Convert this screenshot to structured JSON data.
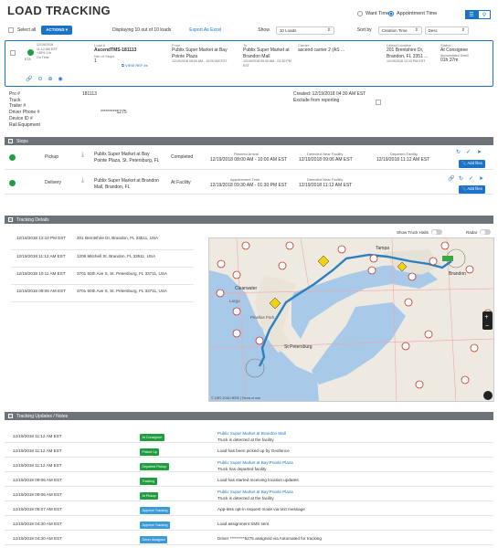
{
  "header": {
    "title": "LOAD TRACKING",
    "want_time_label": "Want Time",
    "appointment_time_label": "Appointment Time"
  },
  "toolbar": {
    "select_all_label": "Select all",
    "actions_label": "ACTIONS ▾",
    "displaying_text": "Displaying 10 out of 10 loads",
    "export_label": "Export As Excel",
    "show_label": "Show",
    "show_value": "10 Loads",
    "sort_label": "Sort by",
    "sort_value": "Creation Time",
    "order_value": "Desc"
  },
  "load": {
    "created_date": "12/19/2018",
    "created_time": "11:12 AM EST",
    "percent": "+45% 1 hr",
    "on_time": "On Time",
    "eta_label": "ETA",
    "load_num_label": "Load #",
    "load_num": "AscendTMS-181113",
    "num_stops_label": "Nbr of Stops",
    "num_stops": "1",
    "view_ref_label": "VIEW REF #s",
    "from_label": "From",
    "from_value": "Publix Super Market at Bay Pointe Plaza",
    "from_time": "12/19/2018 08:00 AM - 10:00 AM EST",
    "to_label": "To",
    "to_value": "Publix Super Market at Brandon Mall",
    "to_time": "12/19/2018 09:30 AM - 01:30 PM EST",
    "carrier_label": "Carrier",
    "carrier_value": "ascend carrier 2 (AS ...",
    "latest_label": "Latest Location",
    "latest_value": "201 Brentshire Dr, Brandon, FL 3351 ...",
    "latest_time": "12/19/2018 12:10 PM EST",
    "status_label": "Status",
    "status_value": "At Consignee",
    "accumulated_label": "Accumulated Dwell",
    "accumulated_value": "01h 37m"
  },
  "details": {
    "pro_label": "Pro #",
    "pro_value": "181113",
    "truck_label": "Truck",
    "trailer_label": "Trailer #",
    "driver_phone_label": "Driver Phone #",
    "driver_phone_value": "*********5275",
    "device_label": "Device ID #",
    "rail_label": "Rail Equipment",
    "created_text": "Created: 12/19/2018 04:30 AM EST",
    "exclude_label": "Exclude from reporting"
  },
  "stops": {
    "section_title": "Stops",
    "rows": [
      {
        "type": "Pickup",
        "address": "Publix Super Market at Bay Pointe Plaza, St. Petersburg, FL",
        "status": "Completed",
        "planned_label": "Planned Arrival",
        "planned": "12/19/2018 08:00 AM - 10:00 AM EST",
        "detected_label": "Detected Near Facility",
        "detected": "12/19/2018 09:06 AM EST",
        "departed_label": "Departed Facility",
        "departed": "12/19/2018 11:12 AM EST",
        "add_files": "Add files"
      },
      {
        "type": "Delivery",
        "address": "Publix Super Market at Brandon Mall, Brandon, FL",
        "status": "At Facility",
        "planned_label": "Appointment Time",
        "planned": "12/19/2018 09:30 AM - 01:30 PM EST",
        "detected_label": "Detected Near Facility",
        "detected": "12/19/2018 11:12 AM EST",
        "departed_label": "",
        "departed": "",
        "add_files": "Add files"
      }
    ]
  },
  "tracking": {
    "section_title": "Tracking Details",
    "show_truck_halts": "Show Truck Halts",
    "radar": "Radar",
    "map_credit": "© 1987-2018 HERE | Terms of use",
    "map_labels": {
      "tampa": "Tampa",
      "clearwater": "Clearwater",
      "st_pete": "St Petersburg",
      "brandon": "Brandon",
      "largo": "Largo",
      "pinellas": "Pinellas Park"
    },
    "rows": [
      {
        "time": "12/19/2018 12:10 PM EST",
        "address": "201 Brentshire Dr, Brandon, FL 33511, USA"
      },
      {
        "time": "12/19/2018 11:12 AM EST",
        "address": "1206 Mitchell St, Brandon, FL 33511, USA"
      },
      {
        "time": "12/19/2018 10:11 AM EST",
        "address": "3701 50th Ave S, St. Petersburg, FL 33711, USA"
      },
      {
        "time": "12/19/2018 09:06 AM EST",
        "address": "3701 50th Ave S, St. Petersburg, FL 33711, USA"
      }
    ]
  },
  "updates": {
    "section_title": "Tracking Updates / Notes",
    "rows": [
      {
        "time": "12/19/2018 11:12 AM EST",
        "badge": "At Consignee",
        "badge_color": "green",
        "link": "Publix Super Market at Brandon Mall",
        "text": "Truck is detected at the facility"
      },
      {
        "time": "12/19/2018 11:12 AM EST",
        "badge": "Picked Up",
        "badge_color": "green",
        "link": "",
        "text": "Load has been picked up by Geofence"
      },
      {
        "time": "12/19/2018 11:12 AM EST",
        "badge": "Departed Pickup",
        "badge_color": "green",
        "link": "Publix Super Market at Bay Pointe Plaza",
        "text": "Truck has departed facility"
      },
      {
        "time": "12/19/2018 09:06 AM EST",
        "badge": "Tracking",
        "badge_color": "green",
        "link": "",
        "text": "Load has started receiving location updates"
      },
      {
        "time": "12/19/2018 09:06 AM EST",
        "badge": "At Pickup",
        "badge_color": "green",
        "link": "Publix Super Market at Bay Pointe Plaza",
        "text": "Truck is detected at the facility"
      },
      {
        "time": "12/19/2018 05:07 AM EST",
        "badge": "Approve Tracking",
        "badge_color": "blue",
        "link": "",
        "text": "App-less opt-in request mode via text message"
      },
      {
        "time": "12/19/2018 04:30 AM EST",
        "badge": "Approve Tracking",
        "badge_color": "blue",
        "link": "",
        "text": "Load assignment SMS sent"
      },
      {
        "time": "12/19/2018 04:30 AM EST",
        "badge": "Driver Assigned",
        "badge_color": "blue",
        "link": "",
        "text": "Driver *********5275 assigned via Automated for tracking"
      }
    ]
  },
  "colors": {
    "accent": "#1a73c9",
    "section": "#6d7378",
    "status_green": "#1e9e3e",
    "water": "#a8c9e8",
    "land": "#eeeae2",
    "route": "#2b7fc2"
  }
}
